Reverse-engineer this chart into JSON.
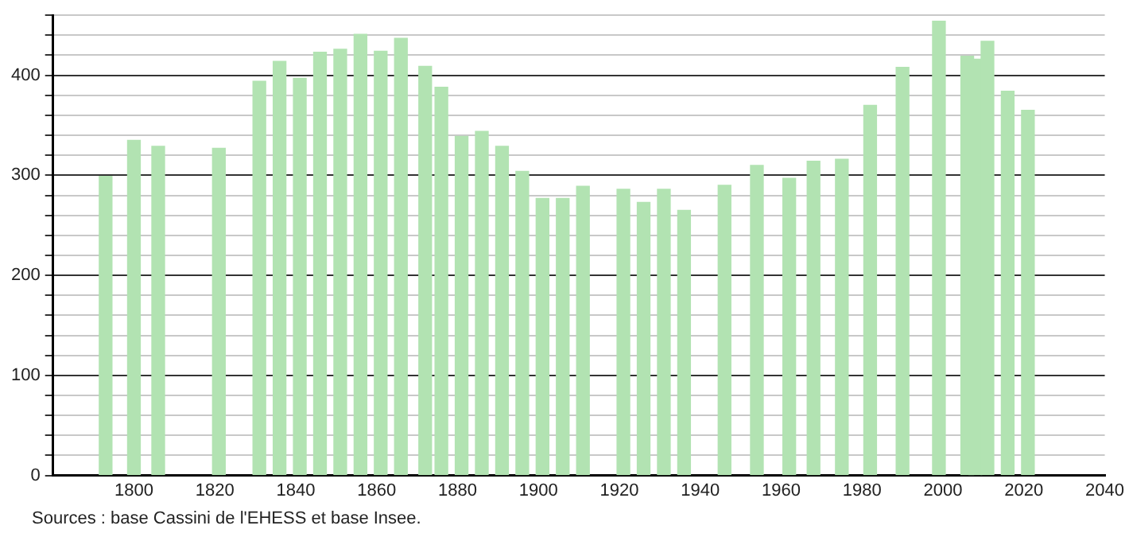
{
  "chart_data": {
    "type": "bar",
    "color": "#b2e3b2",
    "x": [
      1793,
      1800,
      1806,
      1821,
      1831,
      1836,
      1841,
      1846,
      1851,
      1856,
      1861,
      1866,
      1872,
      1876,
      1881,
      1886,
      1891,
      1896,
      1901,
      1906,
      1911,
      1921,
      1926,
      1931,
      1936,
      1946,
      1954,
      1962,
      1968,
      1975,
      1982,
      1990,
      1999,
      2006,
      2008,
      2011,
      2016,
      2021
    ],
    "values": [
      299,
      335,
      329,
      327,
      394,
      414,
      397,
      423,
      426,
      441,
      424,
      437,
      409,
      388,
      339,
      344,
      329,
      304,
      277,
      277,
      289,
      286,
      273,
      286,
      265,
      290,
      310,
      297,
      314,
      316,
      370,
      408,
      454,
      419,
      416,
      434,
      384,
      365
    ],
    "xlim": [
      1780,
      2040
    ],
    "xticks": [
      1800,
      1820,
      1840,
      1860,
      1880,
      1900,
      1920,
      1940,
      1960,
      1980,
      2000,
      2020,
      2040
    ],
    "ylim": [
      0,
      460
    ],
    "yticks": [
      0,
      {
        "value": 20,
        "label": null
      },
      {
        "value": 40,
        "label": null
      },
      {
        "value": 60,
        "label": null
      },
      {
        "value": 80,
        "label": null
      },
      100,
      {
        "value": 120,
        "label": null
      },
      {
        "value": 140,
        "label": null
      },
      {
        "value": 160,
        "label": null
      },
      {
        "value": 180,
        "label": null
      },
      200,
      {
        "value": 220,
        "label": null
      },
      {
        "value": 240,
        "label": null
      },
      {
        "value": 260,
        "label": null
      },
      {
        "value": 280,
        "label": null
      },
      300,
      {
        "value": 320,
        "label": null
      },
      {
        "value": 340,
        "label": null
      },
      {
        "value": 360,
        "label": null
      },
      {
        "value": 380,
        "label": null
      },
      400,
      {
        "value": 420,
        "label": null
      },
      {
        "value": 440,
        "label": null
      },
      {
        "value": 460,
        "label": null
      }
    ],
    "grid": "y",
    "annotations": [
      "Sources : base Cassini de l'EHESS et base Insee."
    ]
  }
}
